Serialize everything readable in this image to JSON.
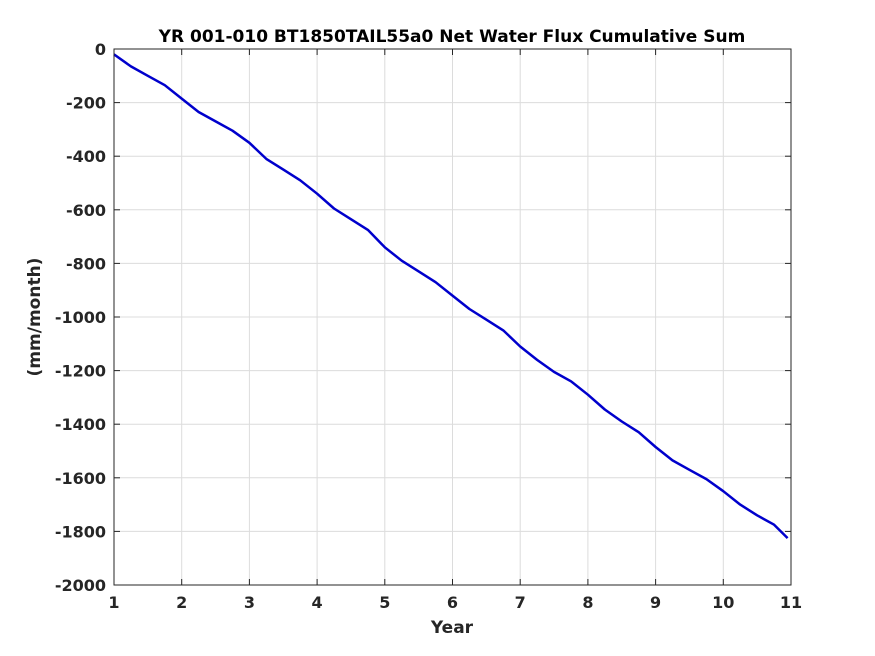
{
  "chart_data": {
    "type": "line",
    "title": "YR 001-010 BT1850TAIL55a0 Net Water Flux Cumulative Sum",
    "xlabel": "Year",
    "ylabel": "(mm/month)",
    "xlim": [
      1,
      11
    ],
    "ylim": [
      -2000,
      0
    ],
    "xticks": [
      "1",
      "2",
      "3",
      "4",
      "5",
      "6",
      "7",
      "8",
      "9",
      "10",
      "11"
    ],
    "yticks": [
      "0",
      "-200",
      "-400",
      "-600",
      "-800",
      "-1000",
      "-1200",
      "-1400",
      "-1600",
      "-1800",
      "-2000"
    ],
    "grid": true,
    "series": [
      {
        "color": "#0000cc",
        "x": [
          1.0,
          1.25,
          1.5,
          1.75,
          2.0,
          2.25,
          2.5,
          2.75,
          3.0,
          3.25,
          3.5,
          3.75,
          4.0,
          4.25,
          4.5,
          4.75,
          5.0,
          5.25,
          5.5,
          5.75,
          6.0,
          6.25,
          6.5,
          6.75,
          7.0,
          7.25,
          7.5,
          7.75,
          8.0,
          8.25,
          8.5,
          8.75,
          9.0,
          9.25,
          9.5,
          9.75,
          10.0,
          10.25,
          10.5,
          10.75,
          10.95
        ],
        "y": [
          -20,
          -65,
          -100,
          -135,
          -185,
          -235,
          -270,
          -305,
          -350,
          -410,
          -450,
          -490,
          -540,
          -595,
          -635,
          -675,
          -740,
          -790,
          -830,
          -870,
          -920,
          -970,
          -1010,
          -1050,
          -1110,
          -1160,
          -1205,
          -1240,
          -1290,
          -1345,
          -1390,
          -1430,
          -1485,
          -1535,
          -1570,
          -1605,
          -1650,
          -1700,
          -1740,
          -1775,
          -1825
        ]
      }
    ]
  }
}
